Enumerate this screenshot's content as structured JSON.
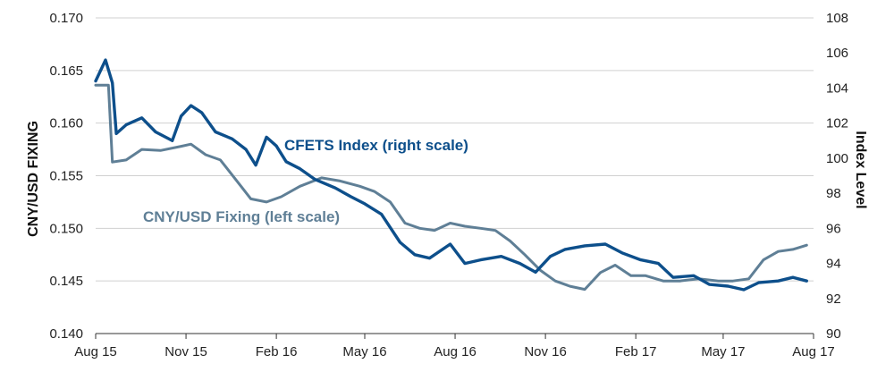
{
  "chart_data": {
    "type": "line",
    "title": "",
    "x_ticks": [
      "Aug 15",
      "Nov 15",
      "Feb 16",
      "May 16",
      "Aug 16",
      "Nov 16",
      "Feb 17",
      "May 17",
      "Aug 17"
    ],
    "y_left": {
      "label": "CNY/USD FIXING",
      "range": [
        0.14,
        0.17
      ],
      "ticks": [
        "0.140",
        "0.145",
        "0.150",
        "0.155",
        "0.160",
        "0.165",
        "0.170"
      ]
    },
    "y_right": {
      "label": "Index Level",
      "range": [
        90,
        108
      ],
      "ticks": [
        "90",
        "92",
        "94",
        "96",
        "98",
        "100",
        "102",
        "104",
        "106",
        "108"
      ]
    },
    "grid": "horizontal",
    "series": [
      {
        "name": "CFETS Index (right scale)",
        "axis": "right",
        "color": "#0d4f8b",
        "points": [
          [
            "Aug 15",
            104.4
          ],
          [
            "Aug 25",
            105.6
          ],
          [
            "Sep 1",
            104.3
          ],
          [
            "Sep 5",
            101.4
          ],
          [
            "Sep 15",
            101.9
          ],
          [
            "Oct 1",
            102.3
          ],
          [
            "Oct 15",
            101.5
          ],
          [
            "Nov 1",
            101.0
          ],
          [
            "Nov 10",
            102.4
          ],
          [
            "Nov 20",
            103.0
          ],
          [
            "Dec 1",
            102.6
          ],
          [
            "Dec 15",
            101.5
          ],
          [
            "Jan 1",
            101.1
          ],
          [
            "Jan 15",
            100.5
          ],
          [
            "Jan 25",
            99.6
          ],
          [
            "Feb 5",
            101.2
          ],
          [
            "Feb 15",
            100.7
          ],
          [
            "Feb 25",
            99.8
          ],
          [
            "Mar 10",
            99.4
          ],
          [
            "Mar 25",
            98.8
          ],
          [
            "Apr 15",
            98.3
          ],
          [
            "May 1",
            97.8
          ],
          [
            "May 15",
            97.4
          ],
          [
            "Jun 1",
            96.8
          ],
          [
            "Jun 20",
            95.2
          ],
          [
            "Jul 5",
            94.5
          ],
          [
            "Jul 20",
            94.3
          ],
          [
            "Aug 10",
            95.1
          ],
          [
            "Aug 25",
            94.0
          ],
          [
            "Sep 10",
            94.2
          ],
          [
            "Oct 1",
            94.4
          ],
          [
            "Oct 20",
            94.0
          ],
          [
            "Nov 5",
            93.5
          ],
          [
            "Nov 20",
            94.4
          ],
          [
            "Dec 5",
            94.8
          ],
          [
            "Dec 25",
            95.0
          ],
          [
            "Jan 15",
            95.1
          ],
          [
            "Feb 1",
            94.6
          ],
          [
            "Feb 20",
            94.2
          ],
          [
            "Mar 10",
            94.0
          ],
          [
            "Mar 25",
            93.2
          ],
          [
            "Apr 15",
            93.3
          ],
          [
            "May 1",
            92.8
          ],
          [
            "May 20",
            92.7
          ],
          [
            "Jun 5",
            92.5
          ],
          [
            "Jun 20",
            92.9
          ],
          [
            "Jul 10",
            93.0
          ],
          [
            "Jul 25",
            93.2
          ],
          [
            "Aug 8",
            93.0
          ]
        ]
      },
      {
        "name": "CNY/USD Fixing (left scale)",
        "axis": "left",
        "color": "#5f7f96",
        "points": [
          [
            "Aug 15",
            0.1636
          ],
          [
            "Aug 28",
            0.1636
          ],
          [
            "Sep 1",
            0.1563
          ],
          [
            "Sep 15",
            0.1565
          ],
          [
            "Oct 1",
            0.1575
          ],
          [
            "Oct 20",
            0.1574
          ],
          [
            "Nov 10",
            0.1578
          ],
          [
            "Nov 20",
            0.158
          ],
          [
            "Dec 5",
            0.157
          ],
          [
            "Dec 20",
            0.1565
          ],
          [
            "Jan 10",
            0.154
          ],
          [
            "Jan 20",
            0.1528
          ],
          [
            "Feb 5",
            0.1525
          ],
          [
            "Feb 20",
            0.153
          ],
          [
            "Mar 10",
            0.154
          ],
          [
            "Apr 1",
            0.1548
          ],
          [
            "Apr 20",
            0.1545
          ],
          [
            "May 10",
            0.154
          ],
          [
            "May 25",
            0.1535
          ],
          [
            "Jun 10",
            0.1525
          ],
          [
            "Jun 25",
            0.1505
          ],
          [
            "Jul 10",
            0.15
          ],
          [
            "Jul 25",
            0.1498
          ],
          [
            "Aug 10",
            0.1505
          ],
          [
            "Aug 25",
            0.1502
          ],
          [
            "Sep 10",
            0.15
          ],
          [
            "Sep 25",
            0.1498
          ],
          [
            "Oct 10",
            0.1488
          ],
          [
            "Oct 25",
            0.1475
          ],
          [
            "Nov 10",
            0.146
          ],
          [
            "Nov 25",
            0.145
          ],
          [
            "Dec 10",
            0.1445
          ],
          [
            "Dec 25",
            0.1442
          ],
          [
            "Jan 10",
            0.1458
          ],
          [
            "Jan 25",
            0.1465
          ],
          [
            "Feb 10",
            0.1455
          ],
          [
            "Feb 25",
            0.1455
          ],
          [
            "Mar 15",
            0.145
          ],
          [
            "Apr 1",
            0.145
          ],
          [
            "Apr 20",
            0.1452
          ],
          [
            "May 10",
            0.145
          ],
          [
            "May 25",
            0.145
          ],
          [
            "Jun 10",
            0.1452
          ],
          [
            "Jun 25",
            0.147
          ],
          [
            "Jul 10",
            0.1478
          ],
          [
            "Jul 25",
            0.148
          ],
          [
            "Aug 8",
            0.1484
          ]
        ]
      }
    ]
  }
}
